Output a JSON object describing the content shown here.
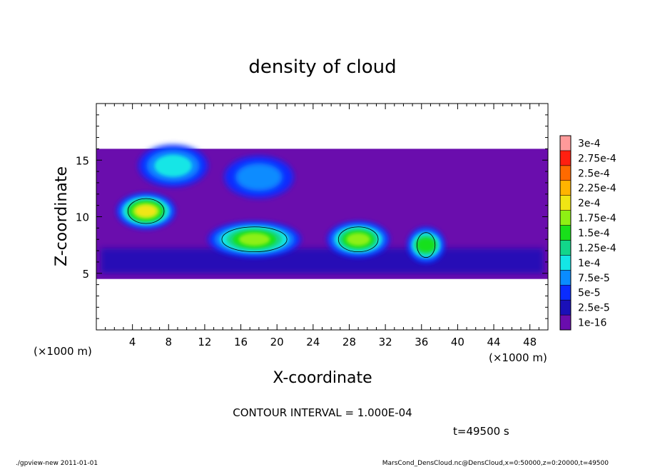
{
  "chart_data": {
    "type": "heatmap",
    "title": "density of cloud",
    "xlabel": "X-coordinate",
    "ylabel": "Z-coordinate",
    "x_unit": "(×1000 m)",
    "z_unit": "(×1000 m)",
    "xlim": [
      0,
      50
    ],
    "ylim": [
      0,
      20
    ],
    "x_ticks": [
      4,
      8,
      12,
      16,
      20,
      24,
      28,
      32,
      36,
      40,
      44,
      48
    ],
    "y_ticks": [
      5,
      10,
      15
    ],
    "colorbar": {
      "labels": [
        "1e-16",
        "2.5e-5",
        "5e-5",
        "7.5e-5",
        "1e-4",
        "1.25e-4",
        "1.5e-4",
        "1.75e-4",
        "2e-4",
        "2.25e-4",
        "2.5e-4",
        "2.75e-4",
        "3e-4"
      ],
      "colors": [
        "#6a0dad",
        "#1a10b8",
        "#0a2cff",
        "#0a8cff",
        "#14e6e6",
        "#12d68a",
        "#18e01a",
        "#8ef014",
        "#f0e614",
        "#ffb400",
        "#ff6a00",
        "#ff2010",
        "#ff9a9a"
      ]
    },
    "contour_interval": 0.0001,
    "cloud_layer_z": [
      4.5,
      16
    ],
    "blobs": [
      {
        "x": 5.5,
        "z": 10.5,
        "max": 0.000175
      },
      {
        "x": 17.5,
        "z": 8.0,
        "max": 0.00015
      },
      {
        "x": 29.0,
        "z": 8.0,
        "max": 0.00015
      },
      {
        "x": 36.5,
        "z": 7.5,
        "max": 0.000125
      },
      {
        "x": 8.5,
        "z": 14.5,
        "max": 7.5e-05
      },
      {
        "x": 18.0,
        "z": 13.5,
        "max": 5e-05
      }
    ]
  },
  "contour_text": "CONTOUR INTERVAL = 1.000E-04",
  "time_text": "t=49500 s",
  "footer_left": "./gpview-new  2011-01-01",
  "footer_right": "MarsCond_DensCloud.nc@DensCloud,x=0:50000,z=0:20000,t=49500"
}
